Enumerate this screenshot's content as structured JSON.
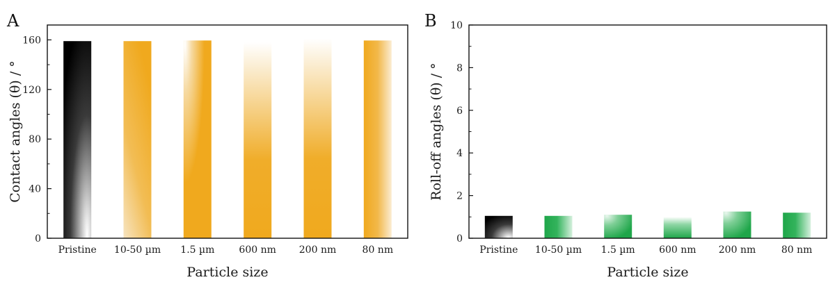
{
  "chart_data": [
    {
      "panel": "A",
      "type": "bar",
      "categories": [
        "Pristine",
        "10-50 µm",
        "1.5 µm",
        "600 nm",
        "200 nm",
        "80 nm"
      ],
      "values": [
        159,
        159,
        159.5,
        158,
        161,
        159.5
      ],
      "xlabel": "Particle size",
      "ylabel": "Contact angles (θ) / °",
      "ylim": [
        0,
        172
      ],
      "yticks": [
        0,
        40,
        80,
        120,
        160
      ],
      "bar_fills": [
        "black-radial",
        "orange-left-fade",
        "orange-radial",
        "orange-top-fade",
        "orange-top-fade",
        "orange-right-fade"
      ],
      "colors": {
        "orange": "#f0a91e",
        "black": "#000000"
      }
    },
    {
      "panel": "B",
      "type": "bar",
      "categories": [
        "Pristine",
        "10-50 µm",
        "1.5 µm",
        "600 nm",
        "200 nm",
        "80 nm"
      ],
      "values": [
        1.05,
        1.05,
        1.1,
        1.0,
        1.25,
        1.2
      ],
      "xlabel": "Particle size",
      "ylabel": "Roll-off angles (θ) / °",
      "ylim": [
        0,
        10
      ],
      "yticks": [
        0,
        2,
        4,
        6,
        8,
        10
      ],
      "bar_fills": [
        "black-radial",
        "green-right-fade",
        "green-radial",
        "green-top-fade",
        "green-radial",
        "green-right-fade"
      ],
      "colors": {
        "green": "#1fa64a",
        "black": "#000000"
      }
    }
  ]
}
